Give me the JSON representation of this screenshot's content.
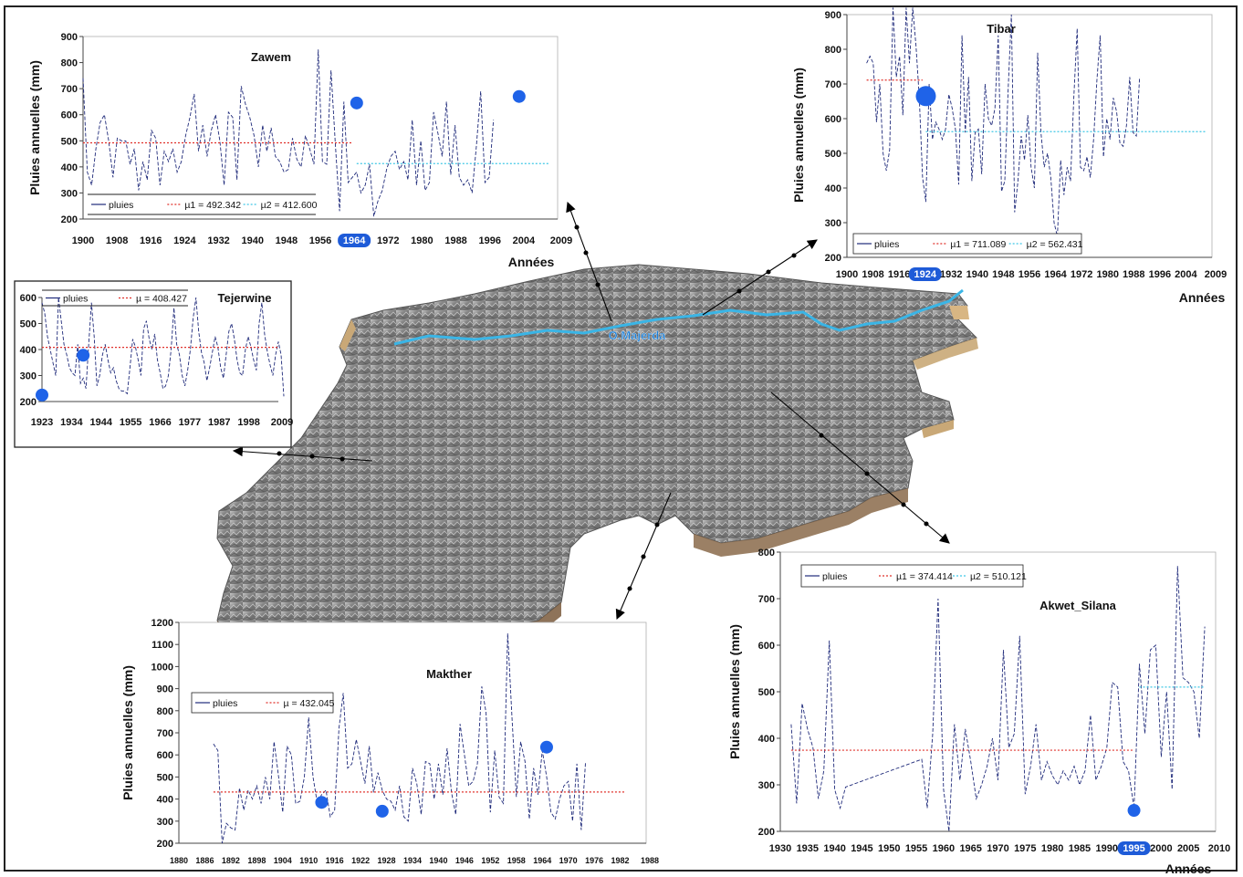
{
  "map": {
    "river_label": "O.Majerda"
  },
  "chart_data": [
    {
      "id": "zawem",
      "type": "line",
      "title": "Zawem",
      "xlabel": "Années",
      "ylabel": "Pluies annuelles (mm)",
      "x_ticks": [
        "1900",
        "1908",
        "1916",
        "1924",
        "1932",
        "1940",
        "1948",
        "1956",
        "1964",
        "1972",
        "1980",
        "1988",
        "1996",
        "2004",
        "2009"
      ],
      "highlighted_tick": "1964",
      "ylim": [
        200,
        900
      ],
      "y_ticks": [
        200,
        300,
        400,
        500,
        600,
        700,
        800,
        900
      ],
      "legend_labels": [
        "pluies",
        "µ1 = 492.342",
        "µ2 = 412.600"
      ],
      "x_start": 1900,
      "series": [
        {
          "name": "pluies",
          "values": [
            740,
            380,
            330,
            470,
            570,
            600,
            500,
            360,
            510,
            500,
            500,
            410,
            470,
            310,
            420,
            350,
            540,
            510,
            330,
            460,
            420,
            470,
            380,
            420,
            520,
            590,
            680,
            460,
            560,
            440,
            540,
            600,
            500,
            330,
            610,
            590,
            350,
            710,
            640,
            590,
            520,
            400,
            560,
            460,
            550,
            440,
            420,
            380,
            390,
            510,
            430,
            400,
            520,
            470,
            410,
            850,
            420,
            410,
            770,
            490,
            230,
            650,
            340,
            360,
            380,
            300,
            330,
            410,
            210,
            270,
            310,
            390,
            440,
            460,
            390,
            420,
            350,
            580,
            330,
            500,
            310,
            340,
            610,
            530,
            440,
            650,
            370,
            560,
            360,
            330,
            350,
            300,
            480,
            690,
            340,
            360,
            580
          ]
        },
        {
          "name": "µ1 = 492.342",
          "start": 1900,
          "end": 1963,
          "value": 492.342
        },
        {
          "name": "µ2 = 412.600",
          "start": 1964,
          "end": 2009,
          "value": 412.6
        }
      ],
      "change_points": [
        {
          "x": 1964,
          "y": 645
        },
        {
          "x": 2002,
          "y": 670
        }
      ]
    },
    {
      "id": "tibar",
      "type": "line",
      "title": "Tibar",
      "xlabel": "Années",
      "ylabel": "Pluies annuelles (mm)",
      "x_ticks": [
        "1900",
        "1908",
        "1916",
        "1924",
        "1932",
        "1940",
        "1948",
        "1956",
        "1964",
        "1972",
        "1980",
        "1988",
        "1996",
        "2004",
        "2009"
      ],
      "highlighted_tick": "1924",
      "ylim": [
        200,
        900
      ],
      "y_ticks": [
        200,
        300,
        400,
        500,
        600,
        700,
        800,
        900
      ],
      "legend_labels": [
        "pluies",
        "µ1 = 711.089",
        "µ2 = 562.431"
      ],
      "x_start": 1906,
      "series": [
        {
          "name": "pluies",
          "values": [
            760,
            780,
            760,
            590,
            700,
            500,
            450,
            510,
            920,
            720,
            780,
            610,
            920,
            760,
            920,
            810,
            660,
            430,
            360,
            700,
            540,
            590,
            570,
            540,
            570,
            670,
            630,
            570,
            410,
            840,
            560,
            720,
            420,
            560,
            570,
            440,
            700,
            600,
            580,
            630,
            840,
            390,
            420,
            680,
            900,
            330,
            420,
            550,
            480,
            610,
            460,
            400,
            790,
            560,
            460,
            500,
            430,
            300,
            260,
            480,
            380,
            460,
            420,
            660,
            860,
            460,
            450,
            490,
            430,
            540,
            710,
            840,
            490,
            600,
            540,
            660,
            620,
            530,
            520,
            580,
            720,
            560,
            550,
            720
          ]
        },
        {
          "name": "µ1 = 711.089",
          "start": 1906,
          "end": 1923,
          "value": 711.089
        },
        {
          "name": "µ2 = 562.431",
          "start": 1924,
          "end": 2009,
          "value": 562.431
        }
      ],
      "change_points": [
        {
          "x": 1924,
          "y": 665
        }
      ]
    },
    {
      "id": "tejerwine",
      "type": "line",
      "title": "Tejerwine",
      "xlabel": "",
      "ylabel": "",
      "x_ticks": [
        "1923",
        "1934",
        "1944",
        "1955",
        "1966",
        "1977",
        "1987",
        "1998",
        "2009"
      ],
      "ylim": [
        200,
        600
      ],
      "y_ticks": [
        200,
        300,
        400,
        500,
        600
      ],
      "legend_labels": [
        "pluies",
        "µ = 408.427"
      ],
      "x_start": 1923,
      "series": [
        {
          "name": "pluies",
          "values": [
            580,
            540,
            450,
            400,
            350,
            300,
            600,
            510,
            420,
            380,
            330,
            310,
            300,
            420,
            270,
            290,
            250,
            420,
            580,
            450,
            260,
            300,
            380,
            420,
            360,
            310,
            330,
            280,
            250,
            240,
            240,
            230,
            330,
            440,
            410,
            360,
            300,
            480,
            510,
            440,
            400,
            460,
            360,
            310,
            250,
            260,
            300,
            400,
            560,
            420,
            380,
            300,
            260,
            320,
            400,
            520,
            600,
            470,
            390,
            350,
            280,
            330,
            390,
            450,
            410,
            330,
            290,
            380,
            470,
            500,
            440,
            360,
            310,
            300,
            400,
            450,
            410,
            360,
            320,
            500,
            580,
            460,
            390,
            340,
            300,
            380,
            430,
            380,
            220
          ]
        },
        {
          "name": "µ = 408.427",
          "start": 1923,
          "end": 2009,
          "value": 408.427
        }
      ],
      "change_points": [
        {
          "x": 1923,
          "y": 225
        },
        {
          "x": 1938,
          "y": 378
        }
      ]
    },
    {
      "id": "makther",
      "type": "line",
      "title": "Makther",
      "xlabel": "",
      "ylabel": "Pluies annuelles (mm)",
      "x_ticks": [
        "1880",
        "1886",
        "1892",
        "1898",
        "1904",
        "1910",
        "1916",
        "1922",
        "1928",
        "1934",
        "1940",
        "1946",
        "1952",
        "1958",
        "1964",
        "1970",
        "1976",
        "1982",
        "1988"
      ],
      "ylim": [
        200,
        1200
      ],
      "y_ticks": [
        200,
        300,
        400,
        500,
        600,
        700,
        800,
        900,
        1000,
        1100,
        1200
      ],
      "legend_labels": [
        "pluies",
        "µ = 432.045"
      ],
      "x_start": 1888,
      "series": [
        {
          "name": "pluies",
          "values": [
            650,
            620,
            200,
            290,
            270,
            260,
            450,
            350,
            440,
            400,
            460,
            380,
            500,
            400,
            660,
            510,
            340,
            640,
            600,
            380,
            390,
            500,
            770,
            500,
            380,
            420,
            440,
            320,
            350,
            720,
            880,
            540,
            560,
            670,
            570,
            470,
            640,
            430,
            520,
            440,
            400,
            390,
            350,
            460,
            320,
            300,
            540,
            470,
            330,
            570,
            560,
            400,
            560,
            420,
            630,
            430,
            330,
            740,
            600,
            460,
            480,
            560,
            910,
            790,
            340,
            620,
            410,
            380,
            1150,
            770,
            410,
            660,
            570,
            310,
            540,
            420,
            620,
            500,
            340,
            310,
            400,
            460,
            480,
            300,
            560,
            260,
            570
          ]
        },
        {
          "name": "µ = 432.045",
          "start": 1888,
          "end": 1983,
          "value": 432.045
        }
      ],
      "change_points": [
        {
          "x": 1913,
          "y": 385
        },
        {
          "x": 1927,
          "y": 345
        },
        {
          "x": 1965,
          "y": 635
        }
      ]
    },
    {
      "id": "akwet_silana",
      "type": "line",
      "title": "Akwet_Silana",
      "xlabel": "Années",
      "ylabel": "Pluies annuelles (mm)",
      "x_ticks": [
        "1930",
        "1935",
        "1940",
        "1945",
        "1950",
        "1955",
        "1960",
        "1965",
        "1970",
        "1975",
        "1980",
        "1985",
        "1990",
        "1995",
        "2000",
        "2005",
        "2010"
      ],
      "highlighted_tick": "1995",
      "ylim": [
        200,
        800
      ],
      "y_ticks": [
        200,
        300,
        400,
        500,
        600,
        700,
        800
      ],
      "legend_labels": [
        "pluies",
        "µ1 = 374.414",
        "µ2 = 510.121"
      ],
      "series": [
        {
          "name": "pluies",
          "x": [
            1932,
            1933,
            1934,
            1935,
            1936,
            1937,
            1938,
            1939,
            1940,
            1941,
            1942,
            1956,
            1957,
            1958,
            1959,
            1960,
            1961,
            1962,
            1963,
            1964,
            1965,
            1966,
            1967,
            1968,
            1969,
            1970,
            1971,
            1972,
            1973,
            1974,
            1975,
            1976,
            1977,
            1978,
            1979,
            1980,
            1981,
            1982,
            1983,
            1984,
            1985,
            1986,
            1987,
            1988,
            1989,
            1990,
            1991,
            1992,
            1993,
            1994,
            1995,
            1996,
            1997,
            1998,
            1999,
            2000,
            2001,
            2002,
            2003,
            2004,
            2005,
            2006,
            2007,
            2008
          ],
          "values": [
            430,
            260,
            475,
            420,
            380,
            270,
            330,
            610,
            290,
            250,
            295,
            355,
            250,
            410,
            700,
            290,
            200,
            430,
            310,
            420,
            350,
            270,
            300,
            340,
            400,
            310,
            590,
            380,
            410,
            620,
            280,
            340,
            430,
            310,
            350,
            320,
            300,
            330,
            310,
            340,
            300,
            330,
            450,
            310,
            340,
            380,
            520,
            510,
            350,
            330,
            250,
            560,
            410,
            590,
            600,
            360,
            500,
            290,
            770,
            530,
            520,
            500,
            400,
            640
          ]
        },
        {
          "name": "µ1 = 374.414",
          "start": 1932,
          "end": 1995,
          "value": 374.414
        },
        {
          "name": "µ2 = 510.121",
          "start": 1996,
          "end": 2008,
          "value": 510.121
        }
      ],
      "change_points": [
        {
          "x": 1995,
          "y": 245
        }
      ]
    }
  ]
}
